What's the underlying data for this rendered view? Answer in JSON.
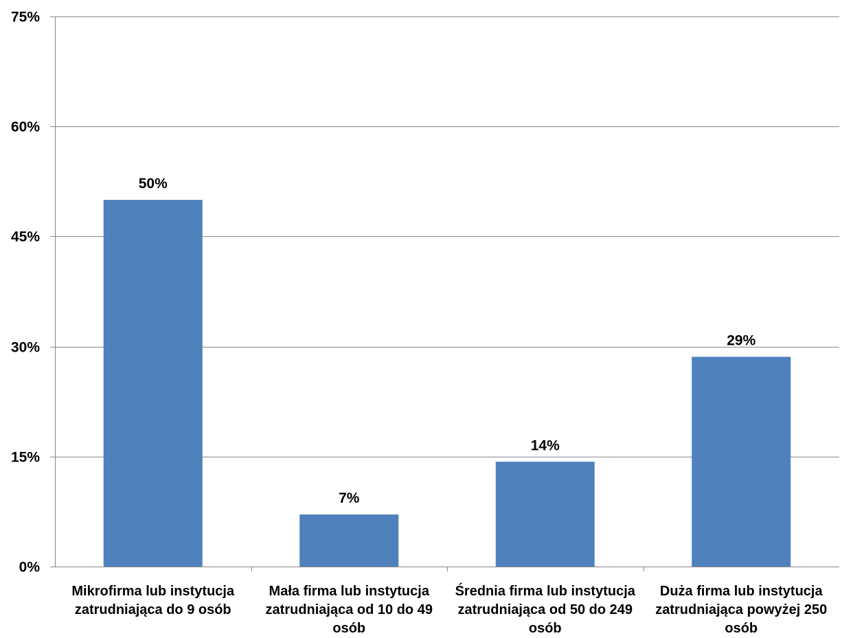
{
  "chart_data": {
    "type": "bar",
    "categories": [
      [
        "Mikrofirma lub instytucja",
        "zatrudniająca do 9 osób"
      ],
      [
        "Mała firma lub instytucja",
        "zatrudniająca od 10 do 49",
        "osób"
      ],
      [
        "Średnia firma lub instytucja",
        "zatrudniająca od 50 do 249",
        "osób"
      ],
      [
        "Duża firma lub instytucja",
        "zatrudniająca powyżej 250",
        "osób"
      ]
    ],
    "values": [
      50,
      7.1,
      14.3,
      28.6
    ],
    "data_labels": [
      "50%",
      "7%",
      "14%",
      "29%"
    ],
    "y_ticks": [
      0,
      15,
      30,
      45,
      60,
      75
    ],
    "y_tick_labels": [
      "0%",
      "15%",
      "30%",
      "45%",
      "60%",
      "75%"
    ],
    "ylim": [
      0,
      75
    ],
    "grid": true,
    "legend": "none",
    "title": "",
    "xlabel": "",
    "ylabel": "",
    "colors": {
      "bar": "#4F81BD",
      "grid": "#868686",
      "axis": "#868686"
    }
  }
}
